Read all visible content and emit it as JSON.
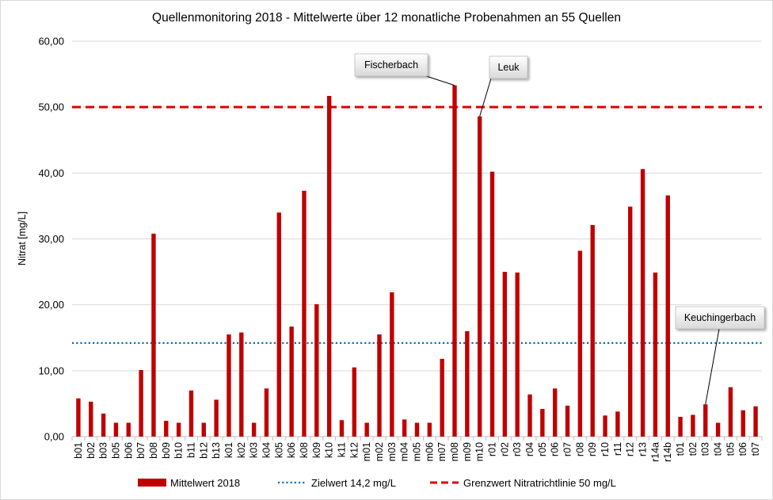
{
  "chart_data": {
    "type": "bar",
    "title": "Quellenmonitoring  2018 - Mittelwerte  über 12 monatliche  Probenahmen an 55 Quellen",
    "ylabel": "Nitrat [mg/L]",
    "xlabel": "",
    "ylim": [
      0,
      60
    ],
    "y_ticks": [
      "0,00",
      "10,00",
      "20,00",
      "30,00",
      "40,00",
      "50,00",
      "60,00"
    ],
    "grid": "horizontal",
    "legend_position": "bottom",
    "categories": [
      "b01",
      "b02",
      "b03",
      "b05",
      "b06",
      "b07",
      "b08",
      "b09",
      "b10",
      "b11",
      "b12",
      "b13",
      "k01",
      "k02",
      "k03",
      "k04",
      "k05",
      "k06",
      "k08",
      "k09",
      "k10",
      "k11",
      "k12",
      "m01",
      "m02",
      "m03",
      "m04",
      "m05",
      "m06",
      "m07",
      "m08",
      "m09",
      "m10",
      "r01",
      "r02",
      "r03",
      "r04",
      "r05",
      "r06",
      "r07",
      "r08",
      "r09",
      "r10",
      "r11",
      "r12",
      "r13",
      "r14a",
      "r14b",
      "t01",
      "t02",
      "t03",
      "t04",
      "t05",
      "t06",
      "t07"
    ],
    "series": [
      {
        "name": "Mittelwert 2018",
        "color": "#c00000",
        "values": [
          5.8,
          5.3,
          3.5,
          2.1,
          2.1,
          10.1,
          30.8,
          2.4,
          2.1,
          7.0,
          2.1,
          5.6,
          15.5,
          15.8,
          2.1,
          7.3,
          34.0,
          16.7,
          37.3,
          20.1,
          51.7,
          2.5,
          10.5,
          2.1,
          15.5,
          21.9,
          2.6,
          2.1,
          2.1,
          11.8,
          53.3,
          16.0,
          48.6,
          40.2,
          25.0,
          24.9,
          6.4,
          4.2,
          7.3,
          4.7,
          28.2,
          32.1,
          3.2,
          3.8,
          34.9,
          40.6,
          24.9,
          36.6,
          3.0,
          3.3,
          4.9,
          2.1,
          7.5,
          4.0,
          4.6
        ]
      },
      {
        "name": "Zielwert 14,2 mg/L",
        "color": "#0070c0",
        "line_style": "dotted",
        "value": 14.2
      },
      {
        "name": "Grenzwert Nitratrichtlinie 50 mg/L",
        "color": "#e00000",
        "line_style": "dashed",
        "value": 50
      }
    ],
    "annotations": [
      {
        "text": "Fischerbach",
        "category": "m08"
      },
      {
        "text": "Leuk",
        "category": "m10"
      },
      {
        "text": "Keuchingerbach",
        "category": "t03"
      }
    ]
  }
}
